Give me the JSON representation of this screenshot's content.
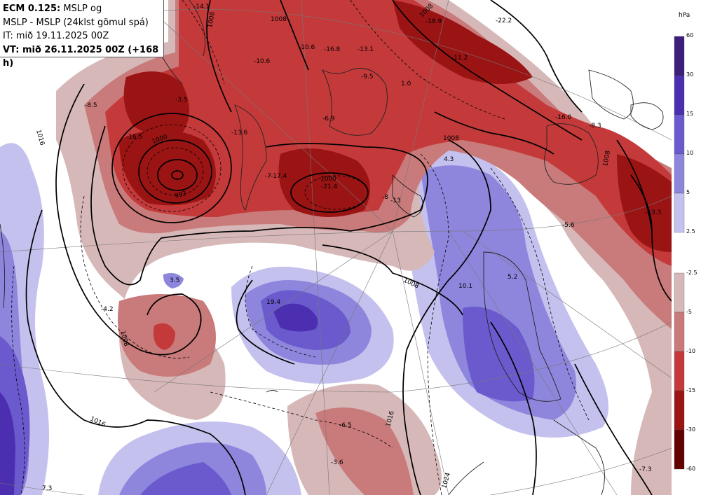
{
  "header": {
    "line1_bold": "ECM 0.125:",
    "line1_rest": " MSLP og",
    "line2": "MSLP - MSLP (24klst gömul spá)",
    "line3": "IT: mið 19.11.2025 00Z",
    "line4": "VT: mið 26.11.2025 00Z (+168 h)"
  },
  "legend": {
    "unit": "hPa",
    "positive_ticks": [
      "60",
      "30",
      "15",
      "10",
      "5",
      "2.5"
    ],
    "negative_ticks": [
      "-2.5",
      "-5",
      "-10",
      "-15",
      "-30",
      "-60"
    ],
    "positive_colors": [
      "#3b1f7a",
      "#4b2fb0",
      "#6a5acd",
      "#8e86dc",
      "#c4c1ee"
    ],
    "negative_colors": [
      "#d7b8b8",
      "#c97a7a",
      "#c43a3a",
      "#9b1414",
      "#640000"
    ]
  },
  "map_labels": {
    "anomaly_values": [
      "-14.1",
      "-10.6",
      "-16.8",
      "-13.1",
      "-18.9",
      "-22.2",
      "-11.2",
      "-10.6",
      "-8.5",
      "-3.5",
      "-13.6",
      "-16.5",
      "1.0",
      "-6.9",
      "-9.5",
      "-16.0",
      "-8.3",
      "-7",
      "-17.4",
      "-21.4",
      "-8",
      "-13",
      "4.3",
      "-13.3",
      "-5.6",
      "3.5",
      "19.4",
      "-4.2",
      "10.1",
      "5.2",
      "-6.5",
      "-3.6",
      "7.3",
      "-7.3"
    ],
    "isobars": [
      "1008",
      "1008",
      "1008",
      "1000",
      "992",
      "1000",
      "1008",
      "1008",
      "1008",
      "1016",
      "1016",
      "1016",
      "1024",
      "1008"
    ]
  }
}
